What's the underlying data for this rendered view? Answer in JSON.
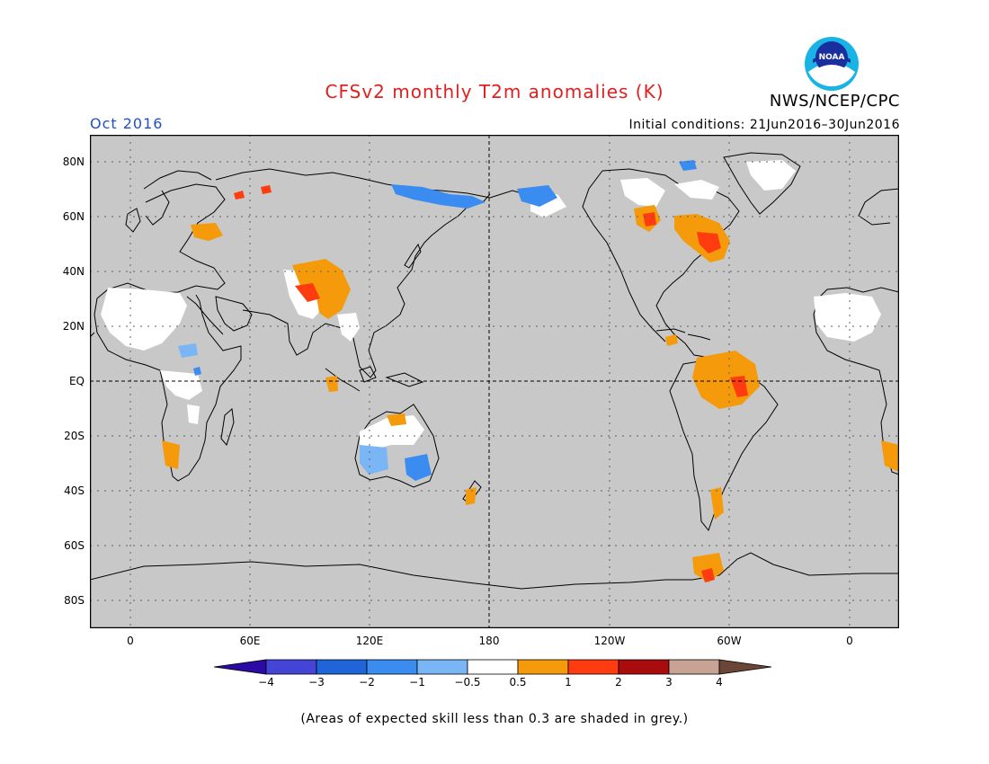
{
  "title": "CFSv2 monthly T2m anomalies (K)",
  "valid_month": "Oct 2016",
  "agency": "NWS/NCEP/CPC",
  "logo_text": "NOAA",
  "initial_conditions": "Initial conditions: 21Jun2016–30Jun2016",
  "latitude_labels": [
    "80N",
    "60N",
    "40N",
    "20N",
    "EQ",
    "20S",
    "40S",
    "60S",
    "80S"
  ],
  "longitude_labels": [
    "0",
    "60E",
    "120E",
    "180",
    "120W",
    "60W",
    "0"
  ],
  "colorbar": {
    "tick_labels": [
      "−4",
      "−3",
      "−2",
      "−1",
      "−0.5",
      "0.5",
      "1",
      "2",
      "3",
      "4"
    ],
    "colors": [
      "#2b0aa6",
      "#4444d6",
      "#1f64d8",
      "#3a8cf0",
      "#7ab6f5",
      "#ffffff",
      "#f59a0a",
      "#ff3b10",
      "#a80c0c",
      "#c8a293",
      "#6b4535"
    ]
  },
  "note": "(Areas of expected skill less than 0.3 are shaded in grey.)",
  "colors": {
    "title": "#e02020",
    "month": "#2050c8",
    "low_skill_grey": "#c8c8c8"
  }
}
